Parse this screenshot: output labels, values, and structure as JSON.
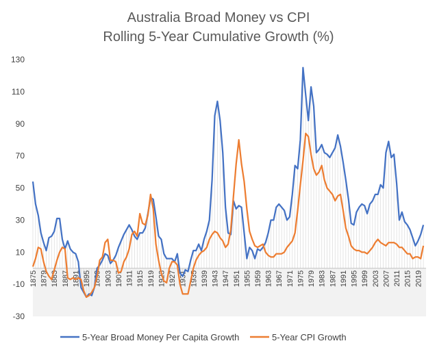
{
  "chart_data": {
    "type": "line",
    "title": [
      "Australia Broad Money vs CPI",
      "Rolling 5-Year Cumulative Growth (%)"
    ],
    "xlabel": "",
    "ylabel": "",
    "ylim": [
      -30,
      130
    ],
    "yticks": [
      -30,
      -10,
      10,
      30,
      50,
      70,
      90,
      110,
      130
    ],
    "xlim": [
      1875,
      2022
    ],
    "xticks": [
      1875,
      1879,
      1883,
      1887,
      1891,
      1895,
      1899,
      1903,
      1907,
      1911,
      1915,
      1919,
      1923,
      1927,
      1931,
      1935,
      1939,
      1943,
      1947,
      1951,
      1955,
      1959,
      1963,
      1967,
      1971,
      1975,
      1979,
      1983,
      1987,
      1991,
      1995,
      1999,
      2003,
      2007,
      2011,
      2015,
      2019
    ],
    "grid": "none",
    "legend": "bottom",
    "series": [
      {
        "name": "5-Year Broad Money Per Capita Growth",
        "color": "#4472C4",
        "points": [
          [
            1875,
            54
          ],
          [
            1876,
            40
          ],
          [
            1877,
            33
          ],
          [
            1878,
            22
          ],
          [
            1879,
            16
          ],
          [
            1880,
            11
          ],
          [
            1881,
            19
          ],
          [
            1882,
            20
          ],
          [
            1883,
            23
          ],
          [
            1884,
            31
          ],
          [
            1885,
            31
          ],
          [
            1886,
            18
          ],
          [
            1887,
            12
          ],
          [
            1888,
            17
          ],
          [
            1889,
            12
          ],
          [
            1890,
            10
          ],
          [
            1891,
            9
          ],
          [
            1892,
            4
          ],
          [
            1893,
            -12
          ],
          [
            1894,
            -15
          ],
          [
            1895,
            -18
          ],
          [
            1896,
            -16
          ],
          [
            1897,
            -17
          ],
          [
            1898,
            -12
          ],
          [
            1899,
            0
          ],
          [
            1900,
            2
          ],
          [
            1901,
            5
          ],
          [
            1902,
            9
          ],
          [
            1903,
            8
          ],
          [
            1904,
            3
          ],
          [
            1905,
            5
          ],
          [
            1906,
            8
          ],
          [
            1907,
            13
          ],
          [
            1908,
            17
          ],
          [
            1909,
            21
          ],
          [
            1910,
            24
          ],
          [
            1911,
            27
          ],
          [
            1912,
            24
          ],
          [
            1913,
            20
          ],
          [
            1914,
            18
          ],
          [
            1915,
            22
          ],
          [
            1916,
            22
          ],
          [
            1917,
            25
          ],
          [
            1918,
            34
          ],
          [
            1919,
            44
          ],
          [
            1920,
            43
          ],
          [
            1921,
            32
          ],
          [
            1922,
            20
          ],
          [
            1923,
            18
          ],
          [
            1924,
            9
          ],
          [
            1925,
            6
          ],
          [
            1926,
            6
          ],
          [
            1927,
            6
          ],
          [
            1928,
            4
          ],
          [
            1929,
            9
          ],
          [
            1930,
            -3
          ],
          [
            1931,
            -5
          ],
          [
            1932,
            -1
          ],
          [
            1933,
            -2
          ],
          [
            1934,
            5
          ],
          [
            1935,
            11
          ],
          [
            1936,
            11
          ],
          [
            1937,
            15
          ],
          [
            1938,
            11
          ],
          [
            1939,
            18
          ],
          [
            1940,
            23
          ],
          [
            1941,
            30
          ],
          [
            1942,
            55
          ],
          [
            1943,
            95
          ],
          [
            1944,
            104
          ],
          [
            1945,
            92
          ],
          [
            1946,
            72
          ],
          [
            1947,
            38
          ],
          [
            1948,
            22
          ],
          [
            1949,
            21
          ],
          [
            1950,
            42
          ],
          [
            1951,
            37
          ],
          [
            1952,
            39
          ],
          [
            1953,
            38
          ],
          [
            1954,
            22
          ],
          [
            1955,
            6
          ],
          [
            1956,
            13
          ],
          [
            1957,
            11
          ],
          [
            1958,
            6
          ],
          [
            1959,
            12
          ],
          [
            1960,
            11
          ],
          [
            1961,
            13
          ],
          [
            1962,
            16
          ],
          [
            1963,
            22
          ],
          [
            1964,
            30
          ],
          [
            1965,
            30
          ],
          [
            1966,
            38
          ],
          [
            1967,
            40
          ],
          [
            1968,
            38
          ],
          [
            1969,
            36
          ],
          [
            1970,
            30
          ],
          [
            1971,
            32
          ],
          [
            1972,
            46
          ],
          [
            1973,
            64
          ],
          [
            1974,
            62
          ],
          [
            1975,
            80
          ],
          [
            1976,
            125
          ],
          [
            1977,
            108
          ],
          [
            1978,
            92
          ],
          [
            1979,
            113
          ],
          [
            1980,
            101
          ],
          [
            1981,
            72
          ],
          [
            1982,
            74
          ],
          [
            1983,
            77
          ],
          [
            1984,
            72
          ],
          [
            1985,
            71
          ],
          [
            1986,
            69
          ],
          [
            1987,
            72
          ],
          [
            1988,
            75
          ],
          [
            1989,
            83
          ],
          [
            1990,
            76
          ],
          [
            1991,
            66
          ],
          [
            1992,
            55
          ],
          [
            1993,
            43
          ],
          [
            1994,
            28
          ],
          [
            1995,
            27
          ],
          [
            1996,
            35
          ],
          [
            1997,
            38
          ],
          [
            1998,
            40
          ],
          [
            1999,
            39
          ],
          [
            2000,
            34
          ],
          [
            2001,
            40
          ],
          [
            2002,
            42
          ],
          [
            2003,
            46
          ],
          [
            2004,
            46
          ],
          [
            2005,
            52
          ],
          [
            2006,
            50
          ],
          [
            2007,
            72
          ],
          [
            2008,
            79
          ],
          [
            2009,
            69
          ],
          [
            2010,
            71
          ],
          [
            2011,
            53
          ],
          [
            2012,
            30
          ],
          [
            2013,
            35
          ],
          [
            2014,
            29
          ],
          [
            2015,
            27
          ],
          [
            2016,
            24
          ],
          [
            2017,
            19
          ],
          [
            2018,
            14
          ],
          [
            2019,
            17
          ],
          [
            2020,
            21
          ],
          [
            2021,
            27
          ]
        ]
      },
      {
        "name": "5-Year CPI Growth",
        "color": "#ED7D31",
        "points": [
          [
            1875,
            1
          ],
          [
            1876,
            6
          ],
          [
            1877,
            13
          ],
          [
            1878,
            12
          ],
          [
            1879,
            4
          ],
          [
            1880,
            -2
          ],
          [
            1881,
            -5
          ],
          [
            1882,
            -7
          ],
          [
            1883,
            -1
          ],
          [
            1884,
            5
          ],
          [
            1885,
            10
          ],
          [
            1886,
            13
          ],
          [
            1887,
            12
          ],
          [
            1888,
            -6
          ],
          [
            1889,
            -7
          ],
          [
            1890,
            -6
          ],
          [
            1891,
            -7
          ],
          [
            1892,
            -6
          ],
          [
            1893,
            -7
          ],
          [
            1894,
            -14
          ],
          [
            1895,
            -18
          ],
          [
            1896,
            -17
          ],
          [
            1897,
            -15
          ],
          [
            1898,
            -12
          ],
          [
            1899,
            -5
          ],
          [
            1900,
            5
          ],
          [
            1901,
            7
          ],
          [
            1902,
            16
          ],
          [
            1903,
            18
          ],
          [
            1904,
            5
          ],
          [
            1905,
            5
          ],
          [
            1906,
            4
          ],
          [
            1907,
            -3
          ],
          [
            1908,
            -2
          ],
          [
            1909,
            4
          ],
          [
            1910,
            7
          ],
          [
            1911,
            12
          ],
          [
            1912,
            21
          ],
          [
            1913,
            23
          ],
          [
            1914,
            20
          ],
          [
            1915,
            34
          ],
          [
            1916,
            28
          ],
          [
            1917,
            27
          ],
          [
            1918,
            33
          ],
          [
            1919,
            46
          ],
          [
            1920,
            37
          ],
          [
            1921,
            15
          ],
          [
            1922,
            5
          ],
          [
            1923,
            -3
          ],
          [
            1924,
            -8
          ],
          [
            1925,
            -9
          ],
          [
            1926,
            0
          ],
          [
            1927,
            4
          ],
          [
            1928,
            4
          ],
          [
            1929,
            2
          ],
          [
            1930,
            -10
          ],
          [
            1931,
            -16
          ],
          [
            1932,
            -16
          ],
          [
            1933,
            -16
          ],
          [
            1934,
            -8
          ],
          [
            1935,
            0
          ],
          [
            1936,
            5
          ],
          [
            1937,
            8
          ],
          [
            1938,
            10
          ],
          [
            1939,
            11
          ],
          [
            1940,
            13
          ],
          [
            1941,
            18
          ],
          [
            1942,
            21
          ],
          [
            1943,
            23
          ],
          [
            1944,
            22
          ],
          [
            1945,
            19
          ],
          [
            1946,
            17
          ],
          [
            1947,
            13
          ],
          [
            1948,
            15
          ],
          [
            1949,
            24
          ],
          [
            1950,
            45
          ],
          [
            1951,
            65
          ],
          [
            1952,
            80
          ],
          [
            1953,
            65
          ],
          [
            1954,
            54
          ],
          [
            1955,
            37
          ],
          [
            1956,
            23
          ],
          [
            1957,
            18
          ],
          [
            1958,
            14
          ],
          [
            1959,
            13
          ],
          [
            1960,
            14
          ],
          [
            1961,
            15
          ],
          [
            1962,
            10
          ],
          [
            1963,
            8
          ],
          [
            1964,
            7
          ],
          [
            1965,
            7
          ],
          [
            1966,
            9
          ],
          [
            1967,
            9
          ],
          [
            1968,
            9
          ],
          [
            1969,
            10
          ],
          [
            1970,
            13
          ],
          [
            1971,
            15
          ],
          [
            1972,
            17
          ],
          [
            1973,
            22
          ],
          [
            1974,
            36
          ],
          [
            1975,
            52
          ],
          [
            1976,
            67
          ],
          [
            1977,
            84
          ],
          [
            1978,
            82
          ],
          [
            1979,
            71
          ],
          [
            1980,
            62
          ],
          [
            1981,
            58
          ],
          [
            1982,
            60
          ],
          [
            1983,
            64
          ],
          [
            1984,
            55
          ],
          [
            1985,
            50
          ],
          [
            1986,
            48
          ],
          [
            1987,
            46
          ],
          [
            1988,
            42
          ],
          [
            1989,
            45
          ],
          [
            1990,
            46
          ],
          [
            1991,
            36
          ],
          [
            1992,
            25
          ],
          [
            1993,
            20
          ],
          [
            1994,
            14
          ],
          [
            1995,
            12
          ],
          [
            1996,
            11
          ],
          [
            1997,
            11
          ],
          [
            1998,
            10
          ],
          [
            1999,
            10
          ],
          [
            2000,
            9
          ],
          [
            2001,
            11
          ],
          [
            2002,
            13
          ],
          [
            2003,
            16
          ],
          [
            2004,
            18
          ],
          [
            2005,
            16
          ],
          [
            2006,
            15
          ],
          [
            2007,
            14
          ],
          [
            2008,
            16
          ],
          [
            2009,
            16
          ],
          [
            2010,
            16
          ],
          [
            2011,
            15
          ],
          [
            2012,
            13
          ],
          [
            2013,
            13
          ],
          [
            2014,
            11
          ],
          [
            2015,
            9
          ],
          [
            2016,
            9
          ],
          [
            2017,
            6
          ],
          [
            2018,
            7
          ],
          [
            2019,
            7
          ],
          [
            2020,
            6
          ],
          [
            2021,
            14
          ]
        ]
      }
    ]
  }
}
